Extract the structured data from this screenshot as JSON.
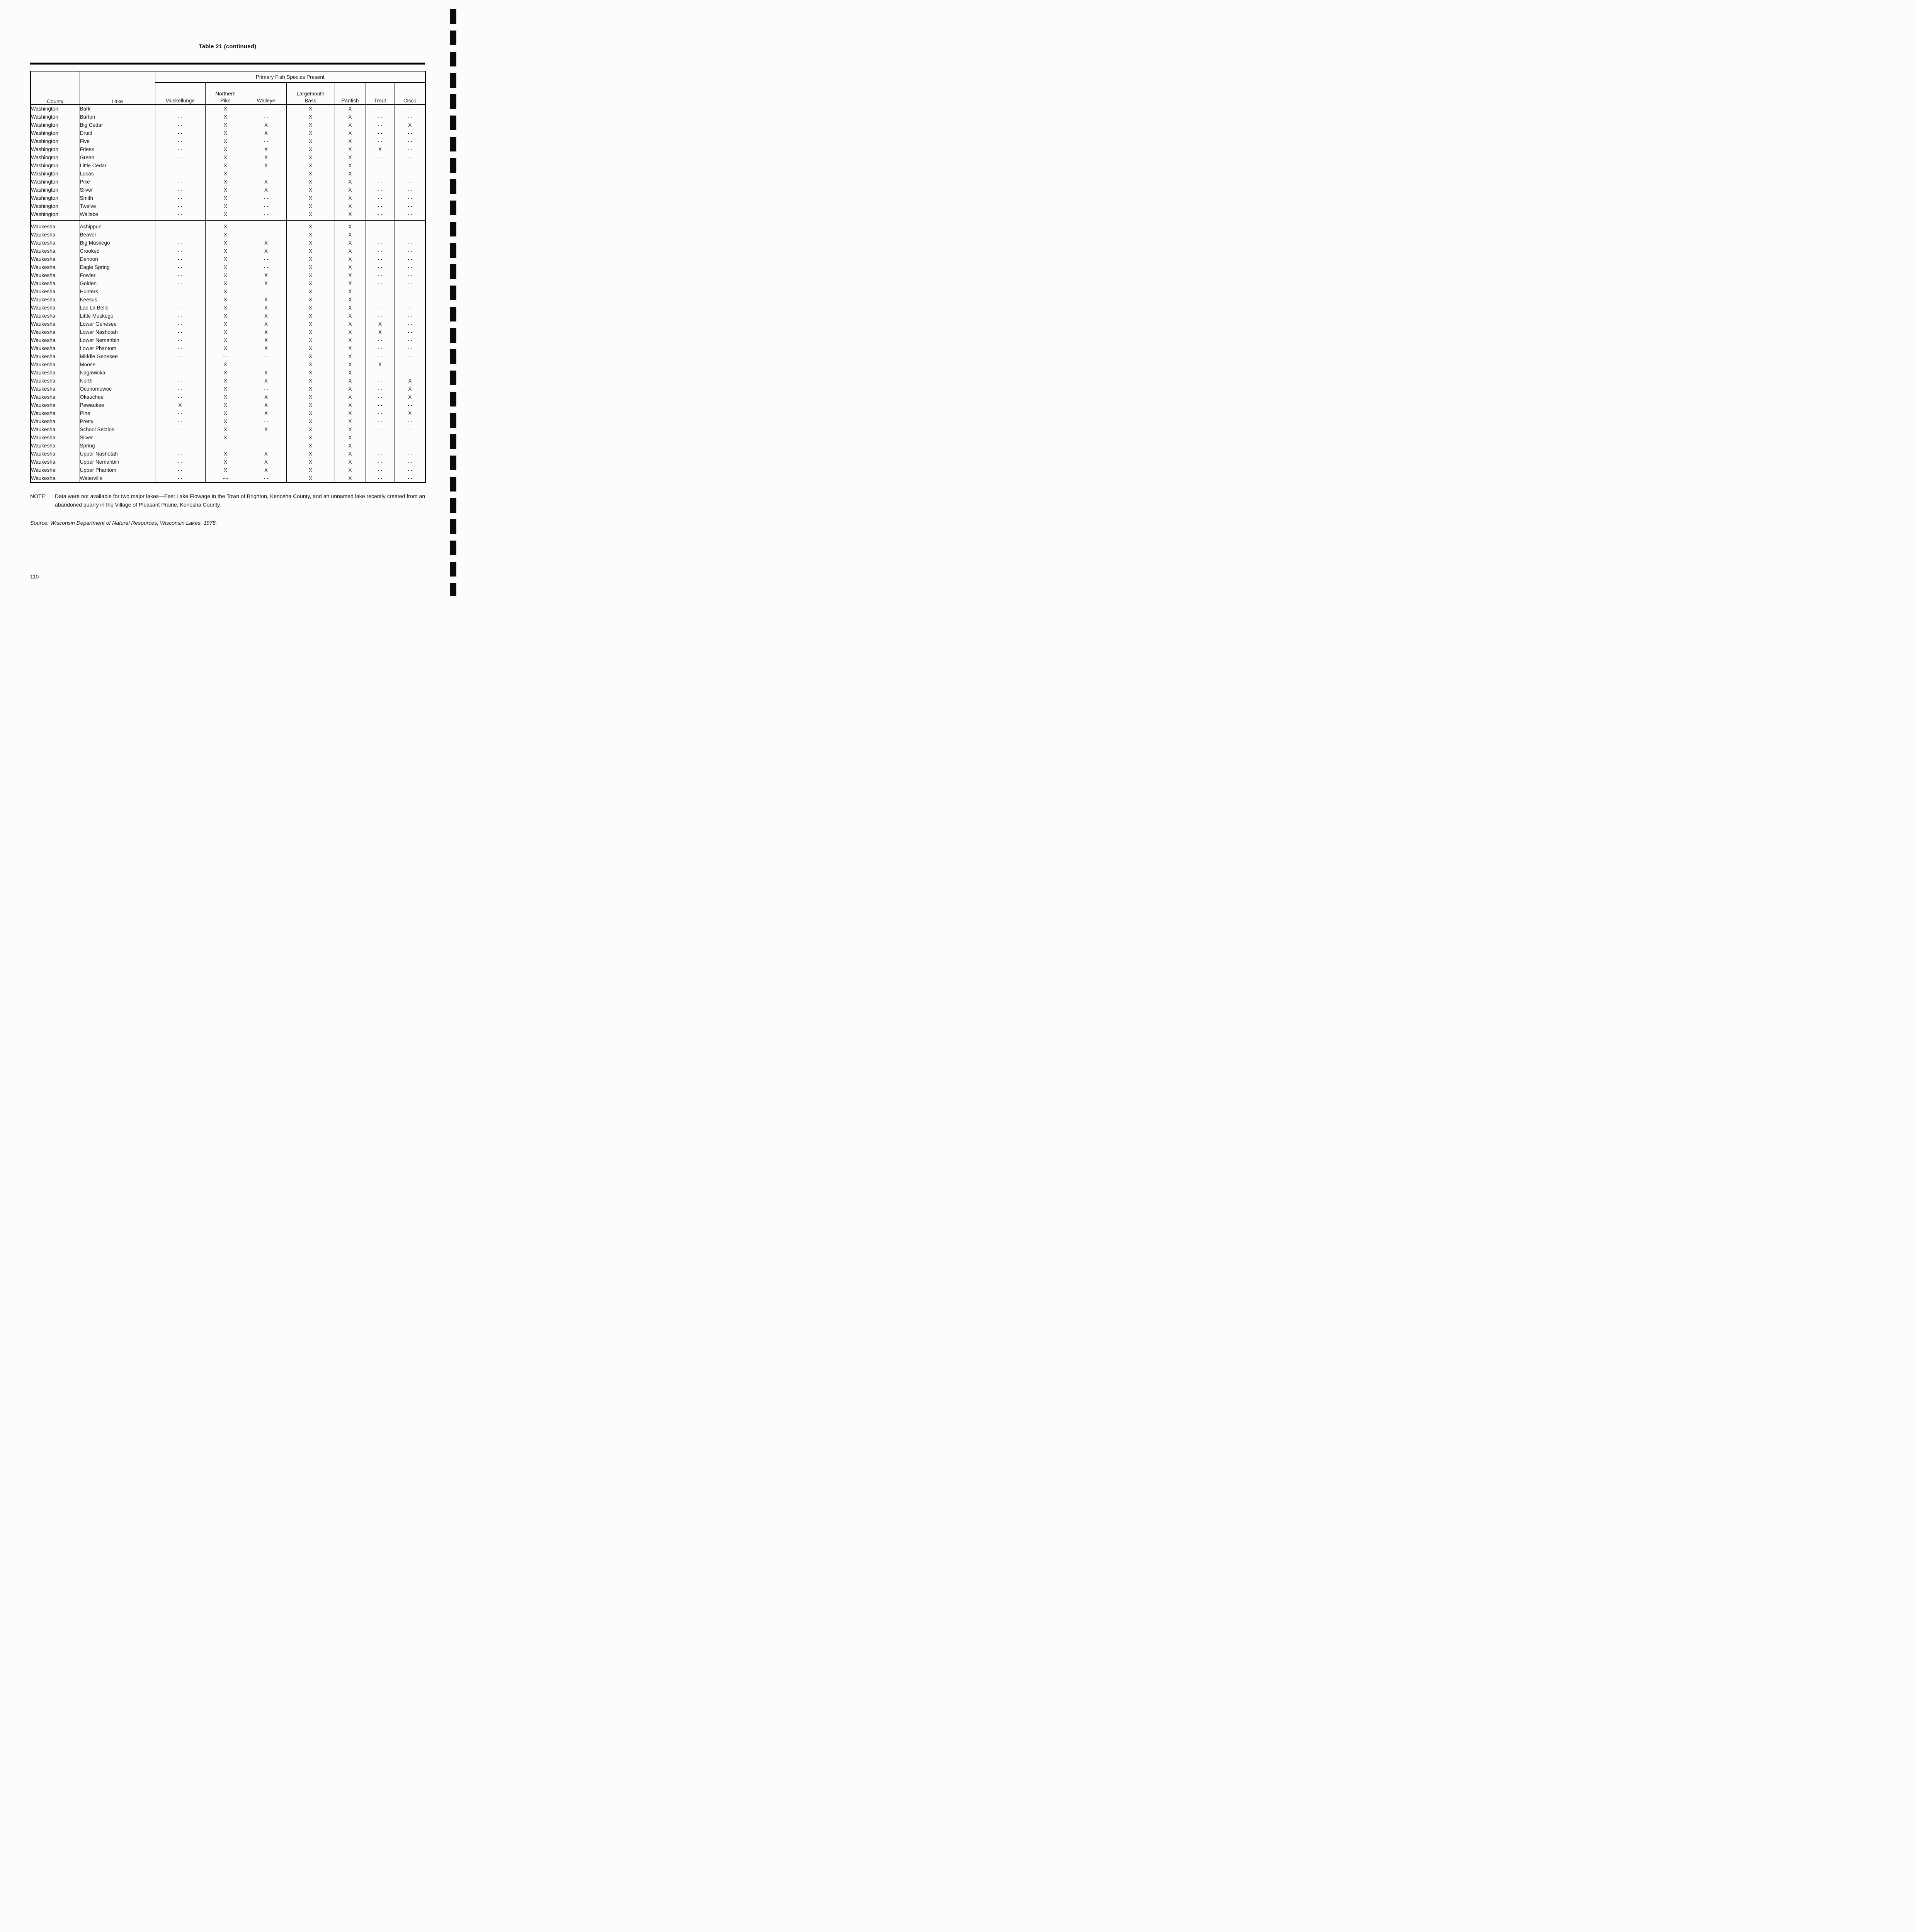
{
  "page": {
    "title": "Table 21 (continued)",
    "page_number": "110"
  },
  "note": {
    "label": "NOTE:",
    "text": "Data were not available for two major lakes—East Lake Flowage in the Town of Brighton, Kenosha County, and an unnamed lake recently created from an abandoned quarry in the Village of Pleasant Prairie, Kenosha County."
  },
  "source": {
    "prefix": "Source:",
    "body": "Wisconsin Department of Natural Resources,",
    "underlined": "Wisconsin Lakes",
    "suffix": ", 1978."
  },
  "table": {
    "span_header": "Primary Fish Species Present",
    "columns": [
      "County",
      "Lake",
      "Muskellunge",
      "Northern\nPike",
      "Walleye",
      "Largemouth\nBass",
      "Panfish",
      "Trout",
      "Cisco"
    ],
    "present_marker": "X",
    "absent_marker": "- -",
    "groups": [
      {
        "label": "Washington",
        "rows": [
          {
            "county": "Washington",
            "lake": "Bark",
            "species": [
              "- -",
              "X",
              "- -",
              "X",
              "X",
              "- -",
              "- -"
            ]
          },
          {
            "county": "Washington",
            "lake": "Barton",
            "species": [
              "- -",
              "X",
              "- -",
              "X",
              "X",
              "- -",
              "- -"
            ]
          },
          {
            "county": "Washington",
            "lake": "Big Cedar",
            "species": [
              "- -",
              "X",
              "X",
              "X",
              "X",
              "- -",
              "X"
            ]
          },
          {
            "county": "Washington",
            "lake": "Druid",
            "species": [
              "- -",
              "X",
              "X",
              "X",
              "X",
              "- -",
              "- -"
            ]
          },
          {
            "county": "Washington",
            "lake": "Five",
            "species": [
              "- -",
              "X",
              "- -",
              "X",
              "X",
              "- -",
              "- -"
            ]
          },
          {
            "county": "Washington",
            "lake": "Friess",
            "species": [
              "- -",
              "X",
              "X",
              "X",
              "X",
              "X",
              "- -"
            ]
          },
          {
            "county": "Washington",
            "lake": "Green",
            "species": [
              "- -",
              "X",
              "X",
              "X",
              "X",
              "- -",
              "- -"
            ]
          },
          {
            "county": "Washington",
            "lake": "Little Cedar",
            "species": [
              "- -",
              "X",
              "X",
              "X",
              "X",
              "- -",
              "- -"
            ]
          },
          {
            "county": "Washington",
            "lake": "Lucas",
            "species": [
              "- -",
              "X",
              "- -",
              "X",
              "X",
              "- -",
              "- -"
            ]
          },
          {
            "county": "Washington",
            "lake": "Pike",
            "species": [
              "- -",
              "X",
              "X",
              "X",
              "X",
              "- -",
              "- -"
            ]
          },
          {
            "county": "Washington",
            "lake": "Silver",
            "species": [
              "- -",
              "X",
              "X",
              "X",
              "X",
              "- -",
              "- -"
            ]
          },
          {
            "county": "Washington",
            "lake": "Smith",
            "species": [
              "- -",
              "X",
              "- -",
              "X",
              "X",
              "- -",
              "- -"
            ]
          },
          {
            "county": "Washington",
            "lake": "Twelve",
            "species": [
              "- -",
              "X",
              "- -",
              "X",
              "X",
              "- -",
              "- -"
            ]
          },
          {
            "county": "Washington",
            "lake": "Wallace",
            "species": [
              "- -",
              "X",
              "- -",
              "X",
              "X",
              "- -",
              "- -"
            ]
          }
        ]
      },
      {
        "label": "Waukesha",
        "rows": [
          {
            "county": "Waukesha",
            "lake": "Ashippun",
            "species": [
              "- -",
              "X",
              "- -",
              "X",
              "X",
              "- -",
              "- -"
            ]
          },
          {
            "county": "Waukesha",
            "lake": "Beaver",
            "species": [
              "- -",
              "X",
              "- -",
              "X",
              "X",
              "- -",
              "- -"
            ]
          },
          {
            "county": "Waukesha",
            "lake": "Big Muskego",
            "species": [
              "- -",
              "X",
              "X",
              "X",
              "X",
              "- -",
              "- -"
            ]
          },
          {
            "county": "Waukesha",
            "lake": "Crooked",
            "species": [
              "- -",
              "X",
              "X",
              "X",
              "X",
              "- -",
              "- -"
            ]
          },
          {
            "county": "Waukesha",
            "lake": "Denoon",
            "species": [
              "- -",
              "X",
              "- -",
              "X",
              "X",
              "- -",
              "- -"
            ]
          },
          {
            "county": "Waukesha",
            "lake": "Eagle Spring",
            "species": [
              "- -",
              "X",
              "- -",
              "X",
              "X",
              "- -",
              "- -"
            ]
          },
          {
            "county": "Waukesha",
            "lake": "Fowler",
            "species": [
              "- -",
              "X",
              "X",
              "X",
              "X",
              "- -",
              "- -"
            ]
          },
          {
            "county": "Waukesha",
            "lake": "Golden",
            "species": [
              "- -",
              "X",
              "X",
              "X",
              "X",
              "- -",
              "- -"
            ]
          },
          {
            "county": "Waukesha",
            "lake": "Hunters",
            "species": [
              "- -",
              "X",
              "- -",
              "X",
              "X",
              "- -",
              "- -"
            ]
          },
          {
            "county": "Waukesha",
            "lake": "Keesus",
            "species": [
              "- -",
              "X",
              "X",
              "X",
              "X",
              "- -",
              "- -"
            ]
          },
          {
            "county": "Waukesha",
            "lake": "Lac La Belle",
            "species": [
              "- -",
              "X",
              "X",
              "X",
              "X",
              "- -",
              "- -"
            ]
          },
          {
            "county": "Waukesha",
            "lake": "Little Muskego",
            "species": [
              "- -",
              "X",
              "X",
              "X",
              "X",
              "- -",
              "- -"
            ]
          },
          {
            "county": "Waukesha",
            "lake": "Lower Genesee",
            "species": [
              "- -",
              "X",
              "X",
              "X",
              "X",
              "X",
              "- -"
            ]
          },
          {
            "county": "Waukesha",
            "lake": "Lower Nashotah",
            "species": [
              "- -",
              "X",
              "X",
              "X",
              "X",
              "X",
              "- -"
            ]
          },
          {
            "county": "Waukesha",
            "lake": "Lower Nemahbin",
            "species": [
              "- -",
              "X",
              "X",
              "X",
              "X",
              "- -",
              "- -"
            ]
          },
          {
            "county": "Waukesha",
            "lake": "Lower Phantom",
            "species": [
              "- -",
              "X",
              "X",
              "X",
              "X",
              "- -",
              "- -"
            ]
          },
          {
            "county": "Waukesha",
            "lake": "Middle Genesee",
            "species": [
              "- -",
              "- -",
              "- -",
              "X",
              "X",
              "- -",
              "- -"
            ]
          },
          {
            "county": "Waukesha",
            "lake": "Moose",
            "species": [
              "- -",
              "X",
              "- -",
              "X",
              "X",
              "X",
              "- -"
            ]
          },
          {
            "county": "Waukesha",
            "lake": "Nagawicka",
            "species": [
              "- -",
              "X",
              "X",
              "X",
              "X",
              "- -",
              "- -"
            ]
          },
          {
            "county": "Waukesha",
            "lake": "North",
            "species": [
              "- -",
              "X",
              "X",
              "X",
              "X",
              "- -",
              "X"
            ]
          },
          {
            "county": "Waukesha",
            "lake": "Oconomowoc",
            "species": [
              "- -",
              "X",
              "- -",
              "X",
              "X",
              "- -",
              "X"
            ]
          },
          {
            "county": "Waukesha",
            "lake": "Okauchee",
            "species": [
              "- -",
              "X",
              "X",
              "X",
              "X",
              "- -",
              "X"
            ]
          },
          {
            "county": "Waukesha",
            "lake": "Pewaukee",
            "species": [
              "X",
              "X",
              "X",
              "X",
              "X",
              "- -",
              "- -"
            ]
          },
          {
            "county": "Waukesha",
            "lake": "Pine",
            "species": [
              "- -",
              "X",
              "X",
              "X",
              "X",
              "- -",
              "X"
            ]
          },
          {
            "county": "Waukesha",
            "lake": "Pretty",
            "species": [
              "- -",
              "X",
              "- -",
              "X",
              "X",
              "- -",
              "- -"
            ]
          },
          {
            "county": "Waukesha",
            "lake": "School Section",
            "species": [
              "- -",
              "X",
              "X",
              "X",
              "X",
              "- -",
              "- -"
            ]
          },
          {
            "county": "Waukesha",
            "lake": "Silver",
            "species": [
              "- -",
              "X",
              "- -",
              "X",
              "X",
              "- -",
              "- -"
            ]
          },
          {
            "county": "Waukesha",
            "lake": "Spring",
            "species": [
              "- -",
              "- -",
              "- -",
              "X",
              "X",
              "- -",
              "- -"
            ]
          },
          {
            "county": "Waukesha",
            "lake": "Upper Nashotah",
            "species": [
              "- -",
              "X",
              "X",
              "X",
              "X",
              "- -",
              "- -"
            ]
          },
          {
            "county": "Waukesha",
            "lake": "Upper Nemahbin",
            "species": [
              "- -",
              "X",
              "X",
              "X",
              "X",
              "- -",
              "- -"
            ]
          },
          {
            "county": "Waukesha",
            "lake": "Upper Phantom",
            "species": [
              "- -",
              "X",
              "X",
              "X",
              "X",
              "- -",
              "- -"
            ]
          },
          {
            "county": "Waukesha",
            "lake": "Waterville",
            "species": [
              "- -",
              "- -",
              "- -",
              "X",
              "X",
              "- -",
              "- -"
            ]
          }
        ]
      }
    ]
  }
}
